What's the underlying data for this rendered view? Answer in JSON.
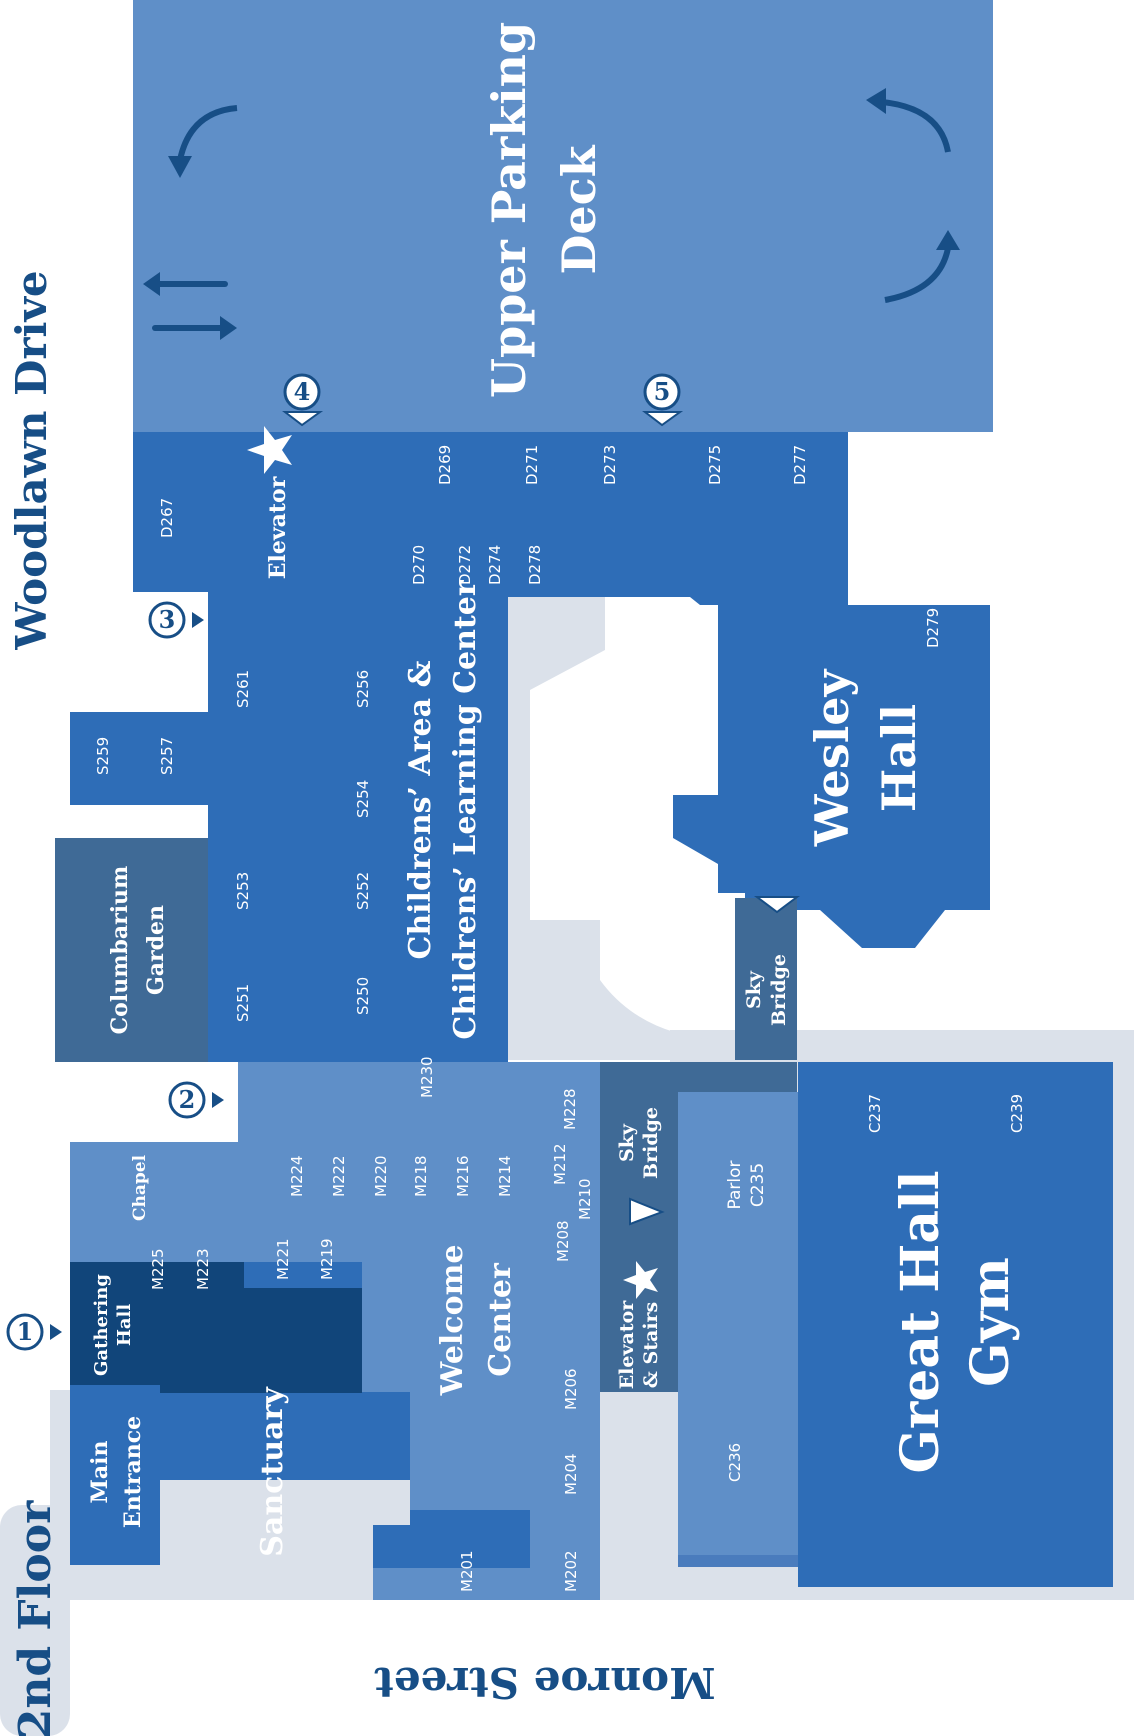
{
  "floor_label": "2nd Floor",
  "streets": {
    "north": "Woodlawn Drive",
    "south": "Monroe Street"
  },
  "areas": {
    "upper_parking_line1": "Upper Parking",
    "upper_parking_line2": "Deck",
    "elevator": "Elevator",
    "childrens_line1": "Childrens’ Area &",
    "childrens_line2": "Childrens’ Learning Center",
    "wesley_line1": "Wesley",
    "wesley_line2": "Hall",
    "columbarium_line1": "Columbarium",
    "columbarium_line2": "Garden",
    "sky_bridge_line1": "Sky",
    "sky_bridge_line2": "Bridge",
    "chapel": "Chapel",
    "gathering_line1": "Gathering",
    "gathering_line2": "Hall",
    "main_entrance_line1": "Main",
    "main_entrance_line2": "Entrance",
    "sanctuary": "Sanctuary",
    "welcome_line1": "Welcome",
    "welcome_line2": "Center",
    "elev_stairs_line1": "Elevator",
    "elev_stairs_line2": "& Stairs",
    "parlor_line1": "Parlor",
    "parlor_line2": "C235",
    "great_hall_line1": "Great Hall",
    "great_hall_line2": "Gym"
  },
  "entrances": [
    "1",
    "2",
    "3",
    "4",
    "5"
  ],
  "rooms": {
    "d267": "D267",
    "d269": "D269",
    "d270": "D270",
    "d271": "D271",
    "d272": "D272",
    "d273": "D273",
    "d274": "D274",
    "d275": "D275",
    "d277": "D277",
    "d278": "D278",
    "d279": "D279",
    "s250": "S250",
    "s251": "S251",
    "s252": "S252",
    "s253": "S253",
    "s254": "S254",
    "s256": "S256",
    "s257": "S257",
    "s259": "S259",
    "s261": "S261",
    "m201": "M201",
    "m202": "M202",
    "m204": "M204",
    "m206": "M206",
    "m208": "M208",
    "m210": "M210",
    "m212": "M212",
    "m214": "M214",
    "m216": "M216",
    "m218": "M218",
    "m219": "M219",
    "m220": "M220",
    "m221": "M221",
    "m222": "M222",
    "m223": "M223",
    "m224": "M224",
    "m225": "M225",
    "m228": "M228",
    "m230": "M230",
    "c236": "C236",
    "c237": "C237",
    "c239": "C239"
  },
  "colors": {
    "light_blue": "#5f8fc8",
    "medium_blue": "#2e6db7",
    "slate_blue": "#3f6a96",
    "dark_navy": "#11457a",
    "gray_path": "#dbe1ea",
    "text_navy": "#174e86"
  },
  "icons": [
    "star-icon",
    "arrow-icon",
    "circular-arrow-icon",
    "entrance-marker-icon"
  ]
}
